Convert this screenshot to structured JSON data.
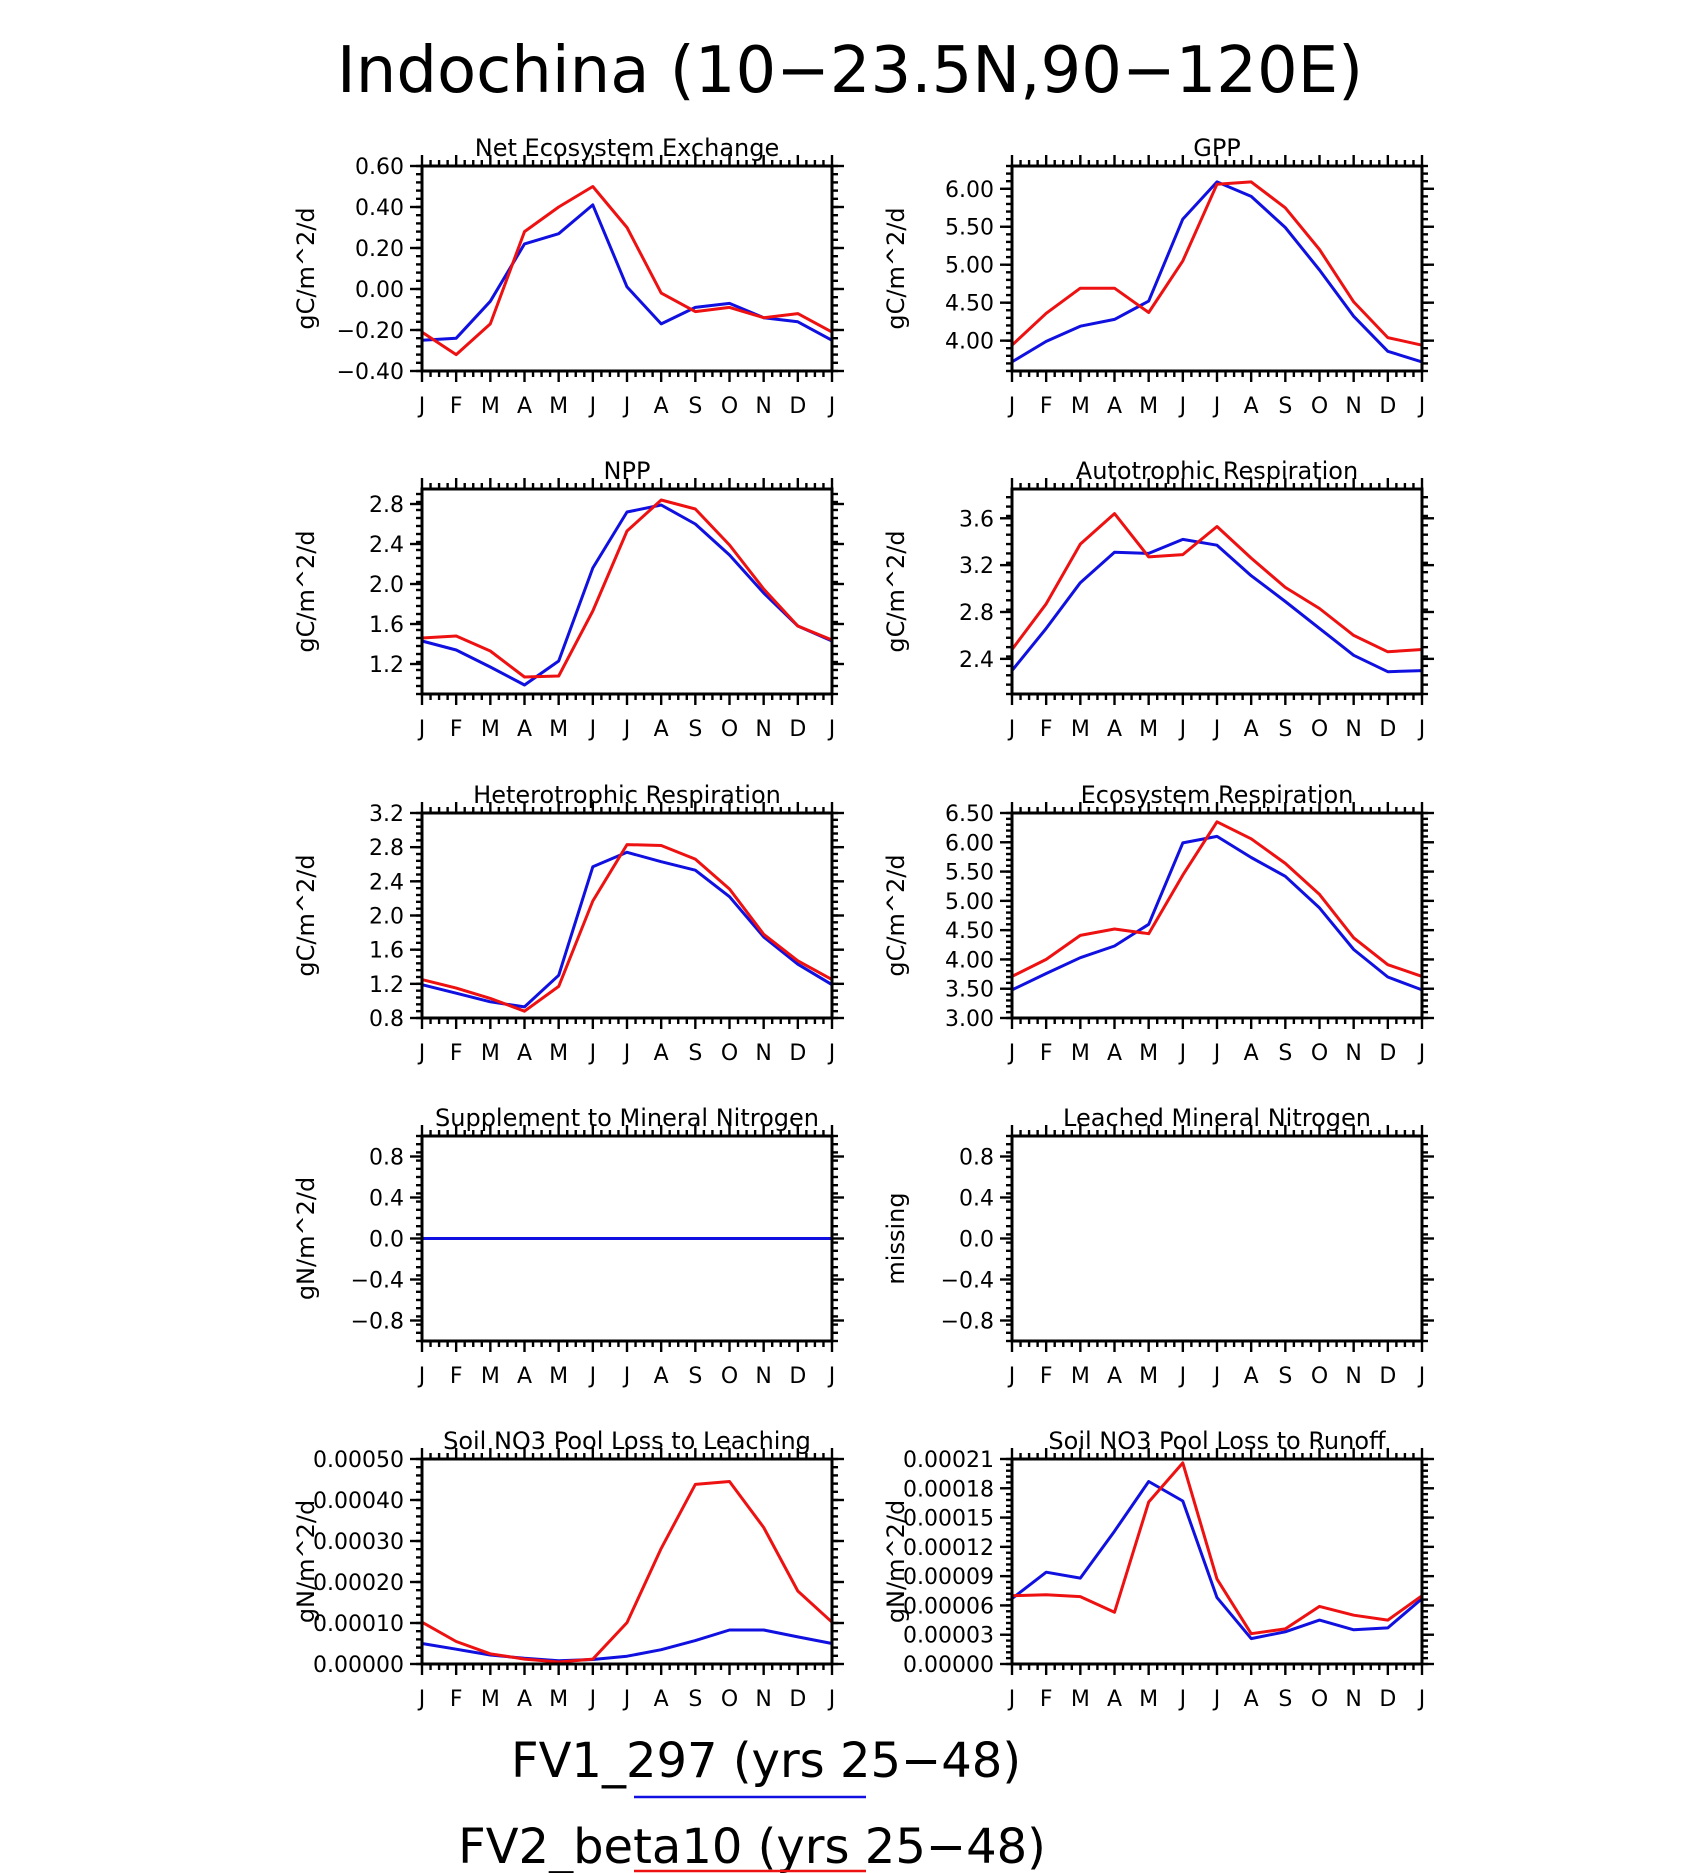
{
  "figure": {
    "title": "Indochina (10−23.5N,90−120E)",
    "legend": [
      {
        "label": "FV1_297 (yrs 25−48)",
        "color": "#1010e0"
      },
      {
        "label": "FV2_beta10 (yrs 25−48)",
        "color": "#ee1111"
      }
    ]
  },
  "colors": {
    "series_a": "#1010e0",
    "series_b": "#ee1111"
  },
  "chart_data": [
    {
      "type": "line",
      "title": "Net Ecosystem Exchange",
      "ylabel": "gC/m^2/d",
      "categories": [
        "J",
        "F",
        "M",
        "A",
        "M",
        "J",
        "J",
        "A",
        "S",
        "O",
        "N",
        "D",
        "J"
      ],
      "ylim": [
        -0.4,
        0.6
      ],
      "yticks": [
        -0.4,
        -0.2,
        0.0,
        0.2,
        0.4,
        0.6
      ],
      "ytick_labels": [
        "−0.40",
        "−0.20",
        "0.00",
        "0.20",
        "0.40",
        "0.60"
      ],
      "series": [
        {
          "name": "FV1_297 (yrs 25−48)",
          "color": "#1010e0",
          "values": [
            -0.25,
            -0.24,
            -0.06,
            0.22,
            0.27,
            0.41,
            0.01,
            -0.17,
            -0.09,
            -0.07,
            -0.14,
            -0.16,
            -0.25
          ]
        },
        {
          "name": "FV2_beta10 (yrs 25−48)",
          "color": "#ee1111",
          "values": [
            -0.21,
            -0.32,
            -0.17,
            0.28,
            0.4,
            0.5,
            0.3,
            -0.02,
            -0.11,
            -0.09,
            -0.14,
            -0.12,
            -0.21
          ]
        }
      ]
    },
    {
      "type": "line",
      "title": "GPP",
      "ylabel": "gC/m^2/d",
      "categories": [
        "J",
        "F",
        "M",
        "A",
        "M",
        "J",
        "J",
        "A",
        "S",
        "O",
        "N",
        "D",
        "J"
      ],
      "ylim": [
        3.6,
        6.3
      ],
      "yticks": [
        4.0,
        4.5,
        5.0,
        5.5,
        6.0
      ],
      "ytick_labels": [
        "4.00",
        "4.50",
        "5.00",
        "5.50",
        "6.00"
      ],
      "series": [
        {
          "name": "FV1_297 (yrs 25−48)",
          "color": "#1010e0",
          "values": [
            3.72,
            3.99,
            4.19,
            4.28,
            4.52,
            5.6,
            6.09,
            5.9,
            5.49,
            4.93,
            4.32,
            3.86,
            3.72
          ]
        },
        {
          "name": "FV2_beta10 (yrs 25−48)",
          "color": "#ee1111",
          "values": [
            3.94,
            4.36,
            4.69,
            4.69,
            4.37,
            5.05,
            6.06,
            6.09,
            5.75,
            5.2,
            4.51,
            4.04,
            3.94
          ]
        }
      ]
    },
    {
      "type": "line",
      "title": "NPP",
      "ylabel": "gC/m^2/d",
      "categories": [
        "J",
        "F",
        "M",
        "A",
        "M",
        "J",
        "J",
        "A",
        "S",
        "O",
        "N",
        "D",
        "J"
      ],
      "ylim": [
        0.9,
        2.95
      ],
      "yticks": [
        1.2,
        1.6,
        2.0,
        2.4,
        2.8
      ],
      "ytick_labels": [
        "1.2",
        "1.6",
        "2.0",
        "2.4",
        "2.8"
      ],
      "series": [
        {
          "name": "FV1_297 (yrs 25−48)",
          "color": "#1010e0",
          "values": [
            1.43,
            1.34,
            1.17,
            0.99,
            1.23,
            2.16,
            2.72,
            2.79,
            2.6,
            2.29,
            1.91,
            1.58,
            1.43
          ]
        },
        {
          "name": "FV2_beta10 (yrs 25−48)",
          "color": "#ee1111",
          "values": [
            1.46,
            1.48,
            1.33,
            1.07,
            1.08,
            1.73,
            2.53,
            2.84,
            2.75,
            2.39,
            1.95,
            1.58,
            1.44
          ]
        }
      ]
    },
    {
      "type": "line",
      "title": "Autotrophic Respiration",
      "ylabel": "gC/m^2/d",
      "categories": [
        "J",
        "F",
        "M",
        "A",
        "M",
        "J",
        "J",
        "A",
        "S",
        "O",
        "N",
        "D",
        "J"
      ],
      "ylim": [
        2.1,
        3.85
      ],
      "yticks": [
        2.4,
        2.8,
        3.2,
        3.6
      ],
      "ytick_labels": [
        "2.4",
        "2.8",
        "3.2",
        "3.6"
      ],
      "series": [
        {
          "name": "FV1_297 (yrs 25−48)",
          "color": "#1010e0",
          "values": [
            2.3,
            2.66,
            3.05,
            3.31,
            3.3,
            3.42,
            3.37,
            3.11,
            2.89,
            2.66,
            2.43,
            2.29,
            2.3
          ]
        },
        {
          "name": "FV2_beta10 (yrs 25−48)",
          "color": "#ee1111",
          "values": [
            2.48,
            2.87,
            3.38,
            3.64,
            3.27,
            3.29,
            3.53,
            3.26,
            3.01,
            2.83,
            2.6,
            2.46,
            2.48
          ]
        }
      ]
    },
    {
      "type": "line",
      "title": "Heterotrophic Respiration",
      "ylabel": "gC/m^2/d",
      "categories": [
        "J",
        "F",
        "M",
        "A",
        "M",
        "J",
        "J",
        "A",
        "S",
        "O",
        "N",
        "D",
        "J"
      ],
      "ylim": [
        0.8,
        3.2
      ],
      "yticks": [
        0.8,
        1.2,
        1.6,
        2.0,
        2.4,
        2.8,
        3.2
      ],
      "ytick_labels": [
        "0.8",
        "1.2",
        "1.6",
        "2.0",
        "2.4",
        "2.8",
        "3.2"
      ],
      "series": [
        {
          "name": "FV1_297 (yrs 25−48)",
          "color": "#1010e0",
          "values": [
            1.19,
            1.09,
            0.99,
            0.93,
            1.3,
            2.57,
            2.74,
            2.63,
            2.53,
            2.22,
            1.75,
            1.43,
            1.19
          ]
        },
        {
          "name": "FV2_beta10 (yrs 25−48)",
          "color": "#ee1111",
          "values": [
            1.25,
            1.15,
            1.03,
            0.88,
            1.17,
            2.17,
            2.83,
            2.82,
            2.66,
            2.31,
            1.78,
            1.47,
            1.25
          ]
        }
      ]
    },
    {
      "type": "line",
      "title": "Ecosystem Respiration",
      "ylabel": "gC/m^2/d",
      "categories": [
        "J",
        "F",
        "M",
        "A",
        "M",
        "J",
        "J",
        "A",
        "S",
        "O",
        "N",
        "D",
        "J"
      ],
      "ylim": [
        3.0,
        6.5
      ],
      "yticks": [
        3.0,
        3.5,
        4.0,
        4.5,
        5.0,
        5.5,
        6.0,
        6.5
      ],
      "ytick_labels": [
        "3.00",
        "3.50",
        "4.00",
        "4.50",
        "5.00",
        "5.50",
        "6.00",
        "6.50"
      ],
      "series": [
        {
          "name": "FV1_297 (yrs 25−48)",
          "color": "#1010e0",
          "values": [
            3.48,
            3.76,
            4.03,
            4.23,
            4.6,
            5.99,
            6.1,
            5.74,
            5.42,
            4.88,
            4.17,
            3.7,
            3.48
          ]
        },
        {
          "name": "FV2_beta10 (yrs 25−48)",
          "color": "#ee1111",
          "values": [
            3.71,
            4.0,
            4.41,
            4.52,
            4.44,
            5.44,
            6.35,
            6.06,
            5.64,
            5.11,
            4.37,
            3.91,
            3.71
          ]
        }
      ]
    },
    {
      "type": "line",
      "title": "Supplement to Mineral Nitrogen",
      "ylabel": "gN/m^2/d",
      "categories": [
        "J",
        "F",
        "M",
        "A",
        "M",
        "J",
        "J",
        "A",
        "S",
        "O",
        "N",
        "D",
        "J"
      ],
      "ylim": [
        -1.0,
        1.0
      ],
      "yticks": [
        -0.8,
        -0.4,
        0.0,
        0.4,
        0.8
      ],
      "ytick_labels": [
        "−0.8",
        "−0.4",
        "0.0",
        "0.4",
        "0.8"
      ],
      "series": [
        {
          "name": "FV1_297 (yrs 25−48)",
          "color": "#1010e0",
          "values": [
            0,
            0,
            0,
            0,
            0,
            0,
            0,
            0,
            0,
            0,
            0,
            0,
            0
          ]
        }
      ]
    },
    {
      "type": "line",
      "title": "Leached Mineral Nitrogen",
      "ylabel": "missing",
      "categories": [
        "J",
        "F",
        "M",
        "A",
        "M",
        "J",
        "J",
        "A",
        "S",
        "O",
        "N",
        "D",
        "J"
      ],
      "ylim": [
        -1.0,
        1.0
      ],
      "yticks": [
        -0.8,
        -0.4,
        0.0,
        0.4,
        0.8
      ],
      "ytick_labels": [
        "−0.8",
        "−0.4",
        "0.0",
        "0.4",
        "0.8"
      ],
      "series": []
    },
    {
      "type": "line",
      "title": "Soil NO3 Pool Loss to Leaching",
      "ylabel": "gN/m^2/d",
      "categories": [
        "J",
        "F",
        "M",
        "A",
        "M",
        "J",
        "J",
        "A",
        "S",
        "O",
        "N",
        "D",
        "J"
      ],
      "ylim": [
        0.0,
        0.0005
      ],
      "yticks": [
        0.0,
        0.0001,
        0.0002,
        0.0003,
        0.0004,
        0.0005
      ],
      "ytick_labels": [
        "0.00000",
        "0.00010",
        "0.00020",
        "0.00030",
        "0.00040",
        "0.00050"
      ],
      "series": [
        {
          "name": "FV1_297 (yrs 25−48)",
          "color": "#1010e0",
          "values": [
            5e-05,
            3.6e-05,
            2.2e-05,
            1.4e-05,
            8e-06,
            1.1e-05,
            1.9e-05,
            3.5e-05,
            5.7e-05,
            8.3e-05,
            8.3e-05,
            6.6e-05,
            5e-05
          ]
        },
        {
          "name": "FV2_beta10 (yrs 25−48)",
          "color": "#ee1111",
          "values": [
            0.000102,
            5.5e-05,
            2.5e-05,
            1.2e-05,
            5e-06,
            1.2e-05,
            0.000101,
            0.000282,
            0.000438,
            0.000445,
            0.000333,
            0.000178,
            0.000102
          ]
        }
      ]
    },
    {
      "type": "line",
      "title": "Soil NO3 Pool Loss to Runoff",
      "ylabel": "gN/m^2/d",
      "categories": [
        "J",
        "F",
        "M",
        "A",
        "M",
        "J",
        "J",
        "A",
        "S",
        "O",
        "N",
        "D",
        "J"
      ],
      "ylim": [
        0.0,
        0.00021
      ],
      "yticks": [
        0.0,
        3e-05,
        6e-05,
        9e-05,
        0.00012,
        0.00015,
        0.00018,
        0.00021
      ],
      "ytick_labels": [
        "0.00000",
        "0.00003",
        "0.00006",
        "0.00009",
        "0.00012",
        "0.00015",
        "0.00018",
        "0.00021"
      ],
      "series": [
        {
          "name": "FV1_297 (yrs 25−48)",
          "color": "#1010e0",
          "values": [
            6.7e-05,
            9.4e-05,
            8.8e-05,
            0.000136,
            0.000187,
            0.000167,
            6.8e-05,
            2.6e-05,
            3.3e-05,
            4.5e-05,
            3.5e-05,
            3.7e-05,
            6.7e-05
          ]
        },
        {
          "name": "FV2_beta10 (yrs 25−48)",
          "color": "#ee1111",
          "values": [
            7e-05,
            7.1e-05,
            6.9e-05,
            5.3e-05,
            0.000166,
            0.000206,
            8.7e-05,
            3.1e-05,
            3.6e-05,
            5.9e-05,
            5e-05,
            4.5e-05,
            7e-05
          ]
        }
      ]
    }
  ]
}
